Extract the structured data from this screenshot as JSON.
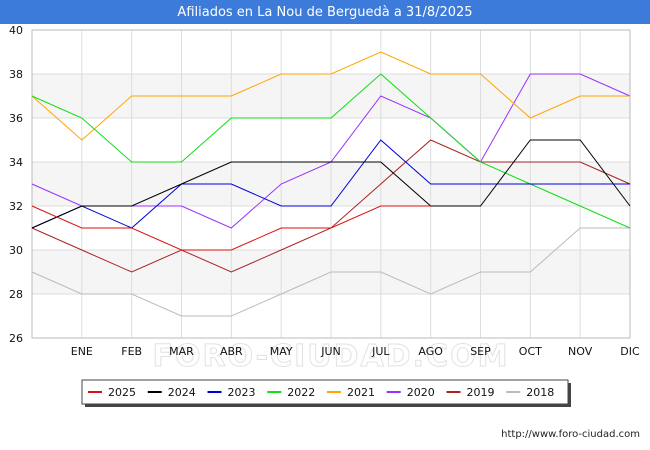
{
  "chart_data": {
    "type": "line",
    "title": "Afiliados en La Nou de Berguedà a 31/8/2025",
    "categories": [
      "",
      "ENE",
      "FEB",
      "MAR",
      "ABR",
      "MAY",
      "JUN",
      "JUL",
      "AGO",
      "SEP",
      "OCT",
      "NOV",
      "DIC"
    ],
    "ylim": [
      26,
      40
    ],
    "yticks": [
      26,
      28,
      30,
      32,
      34,
      36,
      38,
      40
    ],
    "grid": true,
    "legend_position": "bottom",
    "watermark": "FORO-CIUDAD.COM",
    "series": [
      {
        "name": "2025",
        "color": "#dd1111",
        "values": [
          32,
          31,
          31,
          30,
          30,
          31,
          31,
          32,
          32,
          null,
          null,
          null,
          null
        ]
      },
      {
        "name": "2024",
        "color": "#000000",
        "values": [
          31,
          32,
          32,
          33,
          34,
          34,
          34,
          34,
          32,
          32,
          35,
          35,
          32
        ]
      },
      {
        "name": "2023",
        "color": "#0000dd",
        "values": [
          31,
          32,
          31,
          33,
          33,
          32,
          32,
          35,
          33,
          33,
          33,
          33,
          33
        ]
      },
      {
        "name": "2022",
        "color": "#11dd11",
        "values": [
          37,
          36,
          34,
          34,
          36,
          36,
          36,
          38,
          36,
          34,
          33,
          32,
          31
        ]
      },
      {
        "name": "2021",
        "color": "#ffa500",
        "values": [
          37,
          35,
          37,
          37,
          37,
          38,
          38,
          39,
          38,
          38,
          36,
          37,
          37
        ]
      },
      {
        "name": "2020",
        "color": "#9b30ff",
        "values": [
          33,
          32,
          32,
          32,
          31,
          33,
          34,
          37,
          36,
          34,
          38,
          38,
          37
        ]
      },
      {
        "name": "2019",
        "color": "#aa2222",
        "values": [
          31,
          30,
          29,
          30,
          29,
          30,
          31,
          33,
          35,
          34,
          34,
          34,
          33
        ]
      },
      {
        "name": "2018",
        "color": "#bbbbbb",
        "values": [
          29,
          28,
          28,
          27,
          27,
          28,
          29,
          29,
          28,
          29,
          29,
          31,
          31
        ]
      }
    ]
  },
  "footer": {
    "url": "http://www.foro-ciudad.com"
  }
}
